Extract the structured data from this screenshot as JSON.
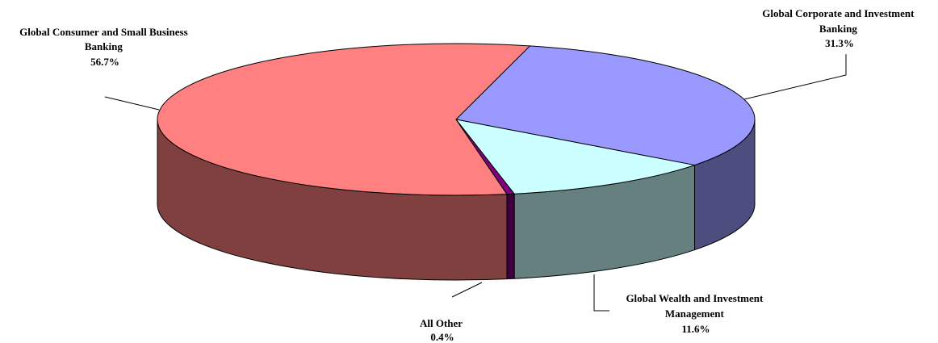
{
  "chart_data": {
    "type": "pie",
    "three_d": true,
    "title": "",
    "slices": [
      {
        "label_lines": [
          "Global Consumer and Small Business",
          "Banking"
        ],
        "pct_label": "56.7%",
        "value": 56.7,
        "color": "#FF8080",
        "side_color": "#804040"
      },
      {
        "label_lines": [
          "Global Corporate and Investment",
          "Banking"
        ],
        "pct_label": "31.3%",
        "value": 31.3,
        "color": "#9999FF",
        "side_color": "#4D4D80"
      },
      {
        "label_lines": [
          "Global Wealth and Investment",
          "Management"
        ],
        "pct_label": "11.6%",
        "value": 11.6,
        "color": "#CCFFFF",
        "side_color": "#668080"
      },
      {
        "label_lines": [
          "All Other"
        ],
        "pct_label": "0.4%",
        "value": 0.4,
        "color": "#800080",
        "side_color": "#400040"
      }
    ]
  }
}
